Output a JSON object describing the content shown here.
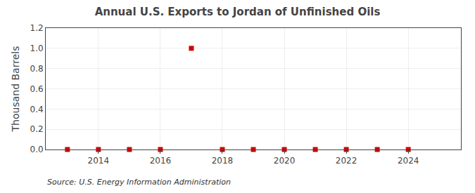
{
  "chart_data": {
    "type": "scatter",
    "title": "Annual U.S. Exports to Jordan of Unfinished Oils",
    "y_label": "Thousand Barrels",
    "annotations": [
      "Source: U.S. Energy Information Administration"
    ],
    "x": [
      2013,
      2014,
      2015,
      2016,
      2017,
      2018,
      2019,
      2020,
      2021,
      2022,
      2023,
      2024
    ],
    "values": [
      0,
      0,
      0,
      0,
      1.0,
      0,
      0,
      0,
      0,
      0,
      0,
      0
    ],
    "color": "#cc0000",
    "marker": "square",
    "xlim": [
      2012.3,
      2025.7
    ],
    "xticks": [
      2014,
      2016,
      2018,
      2020,
      2022,
      2024
    ],
    "ylim": [
      0.0,
      1.2
    ],
    "yticks": [
      {
        "value": 0.0,
        "label": "0.0"
      },
      0.2,
      0.4,
      0.6,
      0.8,
      {
        "value": 1.0,
        "label": "1.0"
      },
      1.2
    ],
    "grid": true
  }
}
